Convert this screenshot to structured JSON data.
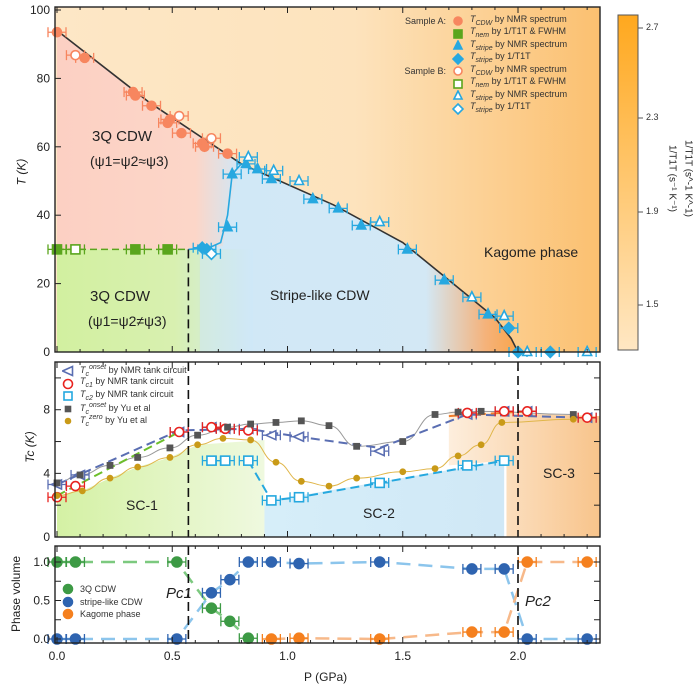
{
  "colors": {
    "cdw3q_high": "#f9bfae",
    "cdw3q_low": "#d2f0a0",
    "stripe": "#cfe8f8",
    "kagome": "#fbb24c",
    "kagome_light": "#fde7c6",
    "tcdw": "#f7865f",
    "tnem": "#5aa51d",
    "tstripe": "#27a8e0",
    "onset": "#5a6eb2",
    "tc1": "#e8231f",
    "tc2": "#25a8df",
    "yu_onset": "#555555",
    "yu_zero": "#c99a18",
    "pv_3q": "#3d9a45",
    "pv_stripe": "#2f64b0",
    "pv_kagome": "#f5801e"
  },
  "top": {
    "ylabel": "T (K)",
    "yticks": [
      0,
      20,
      40,
      60,
      80,
      100
    ],
    "phases": {
      "cdw3q_a": "3Q CDW",
      "cdw3q_a_sub": "(ψ1=ψ2≈ψ3)",
      "cdw3q_b": "3Q CDW",
      "cdw3q_b_sub": "(ψ1=ψ2≠ψ3)",
      "stripe": "Stripe-like CDW",
      "kagome": "Kagome phase"
    },
    "legend": {
      "sample_a": "Sample A:",
      "sample_b": "Sample B:",
      "items": [
        {
          "sym": "T",
          "sub": "CDW",
          "text": " by NMR spectrum"
        },
        {
          "sym": "T",
          "sub": "nem",
          "text": " by 1/T1T & FWHM"
        },
        {
          "sym": "T",
          "sub": "stripe",
          "text": " by NMR spectrum"
        },
        {
          "sym": "T",
          "sub": "stripe",
          "text": " by 1/T1T"
        }
      ]
    },
    "colorbar": {
      "label": "1/T1T (s⁻¹ K⁻¹)",
      "ticks": [
        "2.7",
        "2.3",
        "1.9",
        "1.5"
      ]
    }
  },
  "middle": {
    "ylabel": "Tc (K)",
    "yticks": [
      0,
      4,
      8
    ],
    "regions": {
      "sc1": "SC-1",
      "sc2": "SC-2",
      "sc3": "SC-3"
    },
    "legend": [
      {
        "sym": "T",
        "sub": "c",
        "sup": "onset",
        "text": " by NMR tank circuit"
      },
      {
        "sym": "T",
        "sub": "c1",
        "sup": "",
        "text": " by NMR tank circuit"
      },
      {
        "sym": "T",
        "sub": "c2",
        "sup": "",
        "text": " by NMR tank circuit"
      },
      {
        "sym": "T",
        "sub": "c",
        "sup": "onset",
        "text": " by Yu et al"
      },
      {
        "sym": "T",
        "sub": "c",
        "sup": "zero",
        "text": " by Yu et al"
      }
    ]
  },
  "bottom": {
    "ylabel": "Phase volume",
    "yticks": [
      "0.0",
      "0.5",
      "1.0"
    ],
    "xlabel": "P (GPa)",
    "xticks": [
      "0.0",
      "0.5",
      "1.0",
      "1.5",
      "2.0"
    ],
    "pc1": "Pc1",
    "pc2": "Pc2",
    "legend": [
      "3Q CDW",
      "stripe-like CDW",
      "Kagome phase"
    ]
  },
  "chart_data": [
    {
      "type": "scatter",
      "panel": "top",
      "xlabel": "P (GPa)",
      "ylabel": "T (K)",
      "xlim": [
        0,
        2.35
      ],
      "ylim": [
        0,
        100
      ],
      "colorbar": {
        "label": "1/T1T (s^-1 K^-1)",
        "range": [
          1.3,
          2.8
        ]
      },
      "series": [
        {
          "name": "Sample A: T_CDW by NMR spectrum",
          "marker": "circle",
          "filled": true,
          "color": "#f7865f",
          "points": [
            [
              0,
              93.5
            ],
            [
              0.12,
              86
            ],
            [
              0.33,
              76
            ],
            [
              0.34,
              75
            ],
            [
              0.41,
              72
            ],
            [
              0.48,
              67
            ],
            [
              0.49,
              68
            ],
            [
              0.54,
              64
            ],
            [
              0.63,
              61
            ],
            [
              0.64,
              60
            ],
            [
              0.74,
              58
            ]
          ]
        },
        {
          "name": "Sample A: T_nem by 1/T1T & FWHM",
          "marker": "square",
          "filled": true,
          "color": "#5aa51d",
          "points": [
            [
              0,
              30
            ],
            [
              0.34,
              30
            ],
            [
              0.48,
              30
            ]
          ]
        },
        {
          "name": "Sample A: T_stripe by NMR spectrum",
          "marker": "triangle",
          "filled": true,
          "color": "#27a8e0",
          "points": [
            [
              0.74,
              36.5
            ],
            [
              0.76,
              52
            ],
            [
              0.82,
              55
            ],
            [
              0.87,
              53.5
            ],
            [
              0.93,
              50.6
            ],
            [
              1.11,
              44.7
            ],
            [
              1.22,
              42
            ],
            [
              1.32,
              37
            ],
            [
              1.52,
              30
            ],
            [
              1.68,
              21
            ],
            [
              1.87,
              11
            ]
          ]
        },
        {
          "name": "Sample A: T_stripe by 1/T1T",
          "marker": "diamond",
          "filled": true,
          "color": "#27a8e0",
          "points": [
            [
              0.63,
              30.5
            ],
            [
              0.65,
              30
            ],
            [
              1.96,
              7
            ],
            [
              2.0,
              0
            ],
            [
              2.14,
              0
            ]
          ]
        },
        {
          "name": "Sample B: T_CDW by NMR spectrum",
          "marker": "circle",
          "filled": false,
          "color": "#f7865f",
          "points": [
            [
              0.08,
              86.8
            ],
            [
              0.53,
              69
            ],
            [
              0.67,
              62.5
            ]
          ]
        },
        {
          "name": "Sample B: T_nem by 1/T1T & FWHM",
          "marker": "square",
          "filled": false,
          "color": "#5aa51d",
          "points": [
            [
              0.08,
              30
            ]
          ]
        },
        {
          "name": "Sample B: T_stripe by NMR spectrum",
          "marker": "triangle",
          "filled": false,
          "color": "#27a8e0",
          "points": [
            [
              0.83,
              57
            ],
            [
              0.94,
              53
            ],
            [
              1.05,
              50
            ],
            [
              1.4,
              38
            ],
            [
              1.8,
              16
            ],
            [
              1.94,
              10.5
            ],
            [
              2.04,
              0
            ],
            [
              2.3,
              0
            ]
          ]
        },
        {
          "name": "Sample B: T_stripe by 1/T1T",
          "marker": "diamond",
          "filled": false,
          "color": "#27a8e0",
          "points": [
            [
              0.67,
              28.7
            ]
          ]
        }
      ],
      "lines": {
        "cdw_boundary": [
          [
            0,
            94
          ],
          [
            0.4,
            73
          ],
          [
            0.8,
            55
          ],
          [
            1.2,
            43
          ],
          [
            1.5,
            32
          ],
          [
            1.7,
            21
          ],
          [
            1.9,
            10
          ],
          [
            1.97,
            4
          ],
          [
            2.0,
            0
          ]
        ],
        "stripe_onset": [
          [
            0.57,
            30
          ],
          [
            0.66,
            30.5
          ],
          [
            0.71,
            32
          ],
          [
            0.74,
            40
          ],
          [
            0.76,
            52
          ],
          [
            0.8,
            55
          ]
        ],
        "nematic": [
          [
            0,
            30
          ],
          [
            0.57,
            30
          ]
        ]
      },
      "phase_boundaries": {
        "Pc1": 0.57,
        "Pc2": 2.0
      }
    },
    {
      "type": "scatter",
      "panel": "middle",
      "xlabel": "P (GPa)",
      "ylabel": "Tc (K)",
      "xlim": [
        0,
        2.35
      ],
      "ylim": [
        0,
        11
      ],
      "series": [
        {
          "name": "Tc onset by NMR tank circuit",
          "marker": "triangle-left",
          "filled": false,
          "color": "#5a6eb2",
          "points": [
            [
              0,
              3.3
            ],
            [
              0.1,
              3.9
            ],
            [
              0.53,
              6.6
            ],
            [
              0.67,
              6.9
            ],
            [
              0.73,
              6.8
            ],
            [
              0.83,
              6.8
            ],
            [
              0.93,
              6.4
            ],
            [
              1.05,
              6.3
            ],
            [
              1.4,
              5.4
            ],
            [
              1.78,
              7.7
            ],
            [
              1.94,
              7.9
            ],
            [
              2.04,
              7.9
            ],
            [
              2.3,
              7.5
            ]
          ]
        },
        {
          "name": "Tc1 by NMR tank circuit",
          "marker": "circle",
          "filled": false,
          "color": "#e8231f",
          "points": [
            [
              0,
              2.5
            ],
            [
              0.08,
              3.2
            ],
            [
              0.53,
              6.6
            ],
            [
              0.67,
              6.9
            ],
            [
              0.73,
              6.8
            ],
            [
              0.83,
              6.7
            ],
            [
              1.78,
              7.8
            ],
            [
              1.94,
              7.9
            ],
            [
              2.04,
              7.9
            ],
            [
              2.3,
              7.5
            ]
          ]
        },
        {
          "name": "Tc2 by NMR tank circuit",
          "marker": "square",
          "filled": false,
          "color": "#25a8df",
          "points": [
            [
              0.67,
              4.8
            ],
            [
              0.73,
              4.8
            ],
            [
              0.83,
              4.8
            ],
            [
              0.93,
              2.3
            ],
            [
              1.05,
              2.5
            ],
            [
              1.4,
              3.4
            ],
            [
              1.78,
              4.5
            ],
            [
              1.94,
              4.8
            ]
          ]
        },
        {
          "name": "Tc onset by Yu et al",
          "marker": "square",
          "filled": true,
          "color": "#555555",
          "points": [
            [
              0,
              3.4
            ],
            [
              0.1,
              3.9
            ],
            [
              0.23,
              4.5
            ],
            [
              0.35,
              5.0
            ],
            [
              0.49,
              5.6
            ],
            [
              0.61,
              6.4
            ],
            [
              0.74,
              6.9
            ],
            [
              0.84,
              7.1
            ],
            [
              0.95,
              7.2
            ],
            [
              1.06,
              7.3
            ],
            [
              1.18,
              7.0
            ],
            [
              1.3,
              5.7
            ],
            [
              1.5,
              6.0
            ],
            [
              1.64,
              7.7
            ],
            [
              1.74,
              7.85
            ],
            [
              1.84,
              7.9
            ],
            [
              2.24,
              7.7
            ]
          ]
        },
        {
          "name": "Tc zero by Yu et al",
          "marker": "circle",
          "filled": true,
          "color": "#c99a18",
          "points": [
            [
              0,
              2.6
            ],
            [
              0.11,
              2.9
            ],
            [
              0.23,
              3.7
            ],
            [
              0.35,
              4.4
            ],
            [
              0.49,
              5.0
            ],
            [
              0.61,
              5.8
            ],
            [
              0.72,
              6.2
            ],
            [
              0.84,
              6.1
            ],
            [
              0.95,
              4.7
            ],
            [
              1.06,
              3.5
            ],
            [
              1.18,
              3.2
            ],
            [
              1.3,
              3.7
            ],
            [
              1.5,
              4.1
            ],
            [
              1.64,
              4.3
            ],
            [
              1.74,
              5.1
            ],
            [
              1.84,
              5.8
            ],
            [
              1.93,
              7.2
            ],
            [
              2.24,
              7.4
            ]
          ]
        }
      ]
    },
    {
      "type": "scatter",
      "panel": "bottom",
      "xlabel": "P (GPa)",
      "ylabel": "Phase volume",
      "xlim": [
        0,
        2.35
      ],
      "ylim": [
        -0.05,
        1.2
      ],
      "series": [
        {
          "name": "3Q CDW",
          "color": "#3d9a45",
          "points": [
            [
              0,
              1
            ],
            [
              0.08,
              1
            ],
            [
              0.52,
              1
            ],
            [
              0.67,
              0.4
            ],
            [
              0.75,
              0.23
            ],
            [
              0.83,
              0.01
            ]
          ]
        },
        {
          "name": "stripe-like CDW",
          "color": "#2f64b0",
          "points": [
            [
              0,
              0
            ],
            [
              0.08,
              0
            ],
            [
              0.52,
              0
            ],
            [
              0.67,
              0.6
            ],
            [
              0.75,
              0.77
            ],
            [
              0.83,
              1
            ],
            [
              0.93,
              1
            ],
            [
              1.05,
              0.98
            ],
            [
              1.4,
              1
            ],
            [
              1.8,
              0.91
            ],
            [
              1.94,
              0.91
            ],
            [
              2.04,
              0
            ],
            [
              2.3,
              0
            ]
          ]
        },
        {
          "name": "Kagome phase",
          "color": "#f5801e",
          "points": [
            [
              0.93,
              0
            ],
            [
              1.05,
              0.01
            ],
            [
              1.4,
              0
            ],
            [
              1.8,
              0.09
            ],
            [
              1.94,
              0.09
            ],
            [
              2.04,
              1
            ],
            [
              2.3,
              1
            ]
          ]
        }
      ]
    }
  ]
}
